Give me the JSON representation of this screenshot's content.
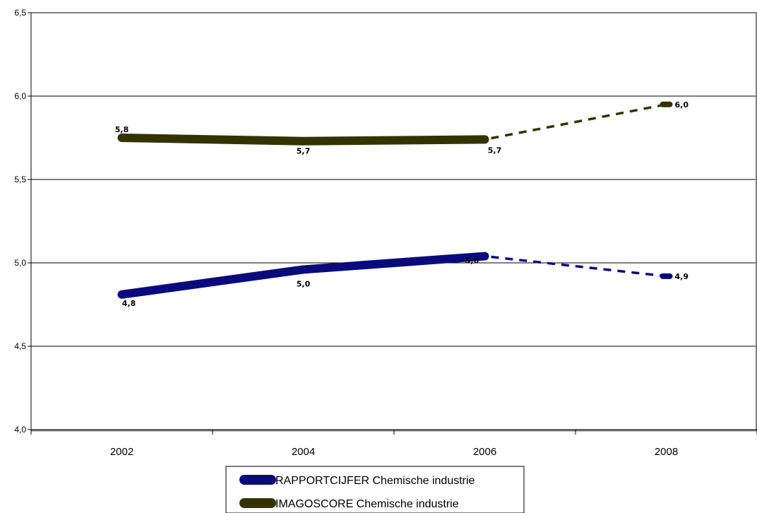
{
  "chart_data": {
    "type": "line",
    "categories": [
      "2002",
      "2004",
      "2006",
      "2008"
    ],
    "ylim": [
      4.0,
      6.5
    ],
    "yticks": [
      "4,0",
      "4,5",
      "5,0",
      "5,5",
      "6,0",
      "6,5"
    ],
    "ytick_values": [
      4.0,
      4.5,
      5.0,
      5.5,
      6.0,
      6.5
    ],
    "grid": true,
    "legend_position": "bottom",
    "series": [
      {
        "name": "RAPPORTCIJFER Chemische industrie",
        "color": "#0a0a7c",
        "values": [
          4.81,
          4.96,
          5.04,
          4.92
        ],
        "labels": [
          "4,8",
          "5,0",
          "5,0",
          "4,9"
        ],
        "dashed_from_index": 2
      },
      {
        "name": "IMAGOSCORE Chemische industrie",
        "color": "#333300",
        "values": [
          5.75,
          5.73,
          5.74,
          5.95
        ],
        "labels": [
          "5,8",
          "5,7",
          "5,7",
          "6,0"
        ],
        "dashed_from_index": 2
      }
    ]
  }
}
